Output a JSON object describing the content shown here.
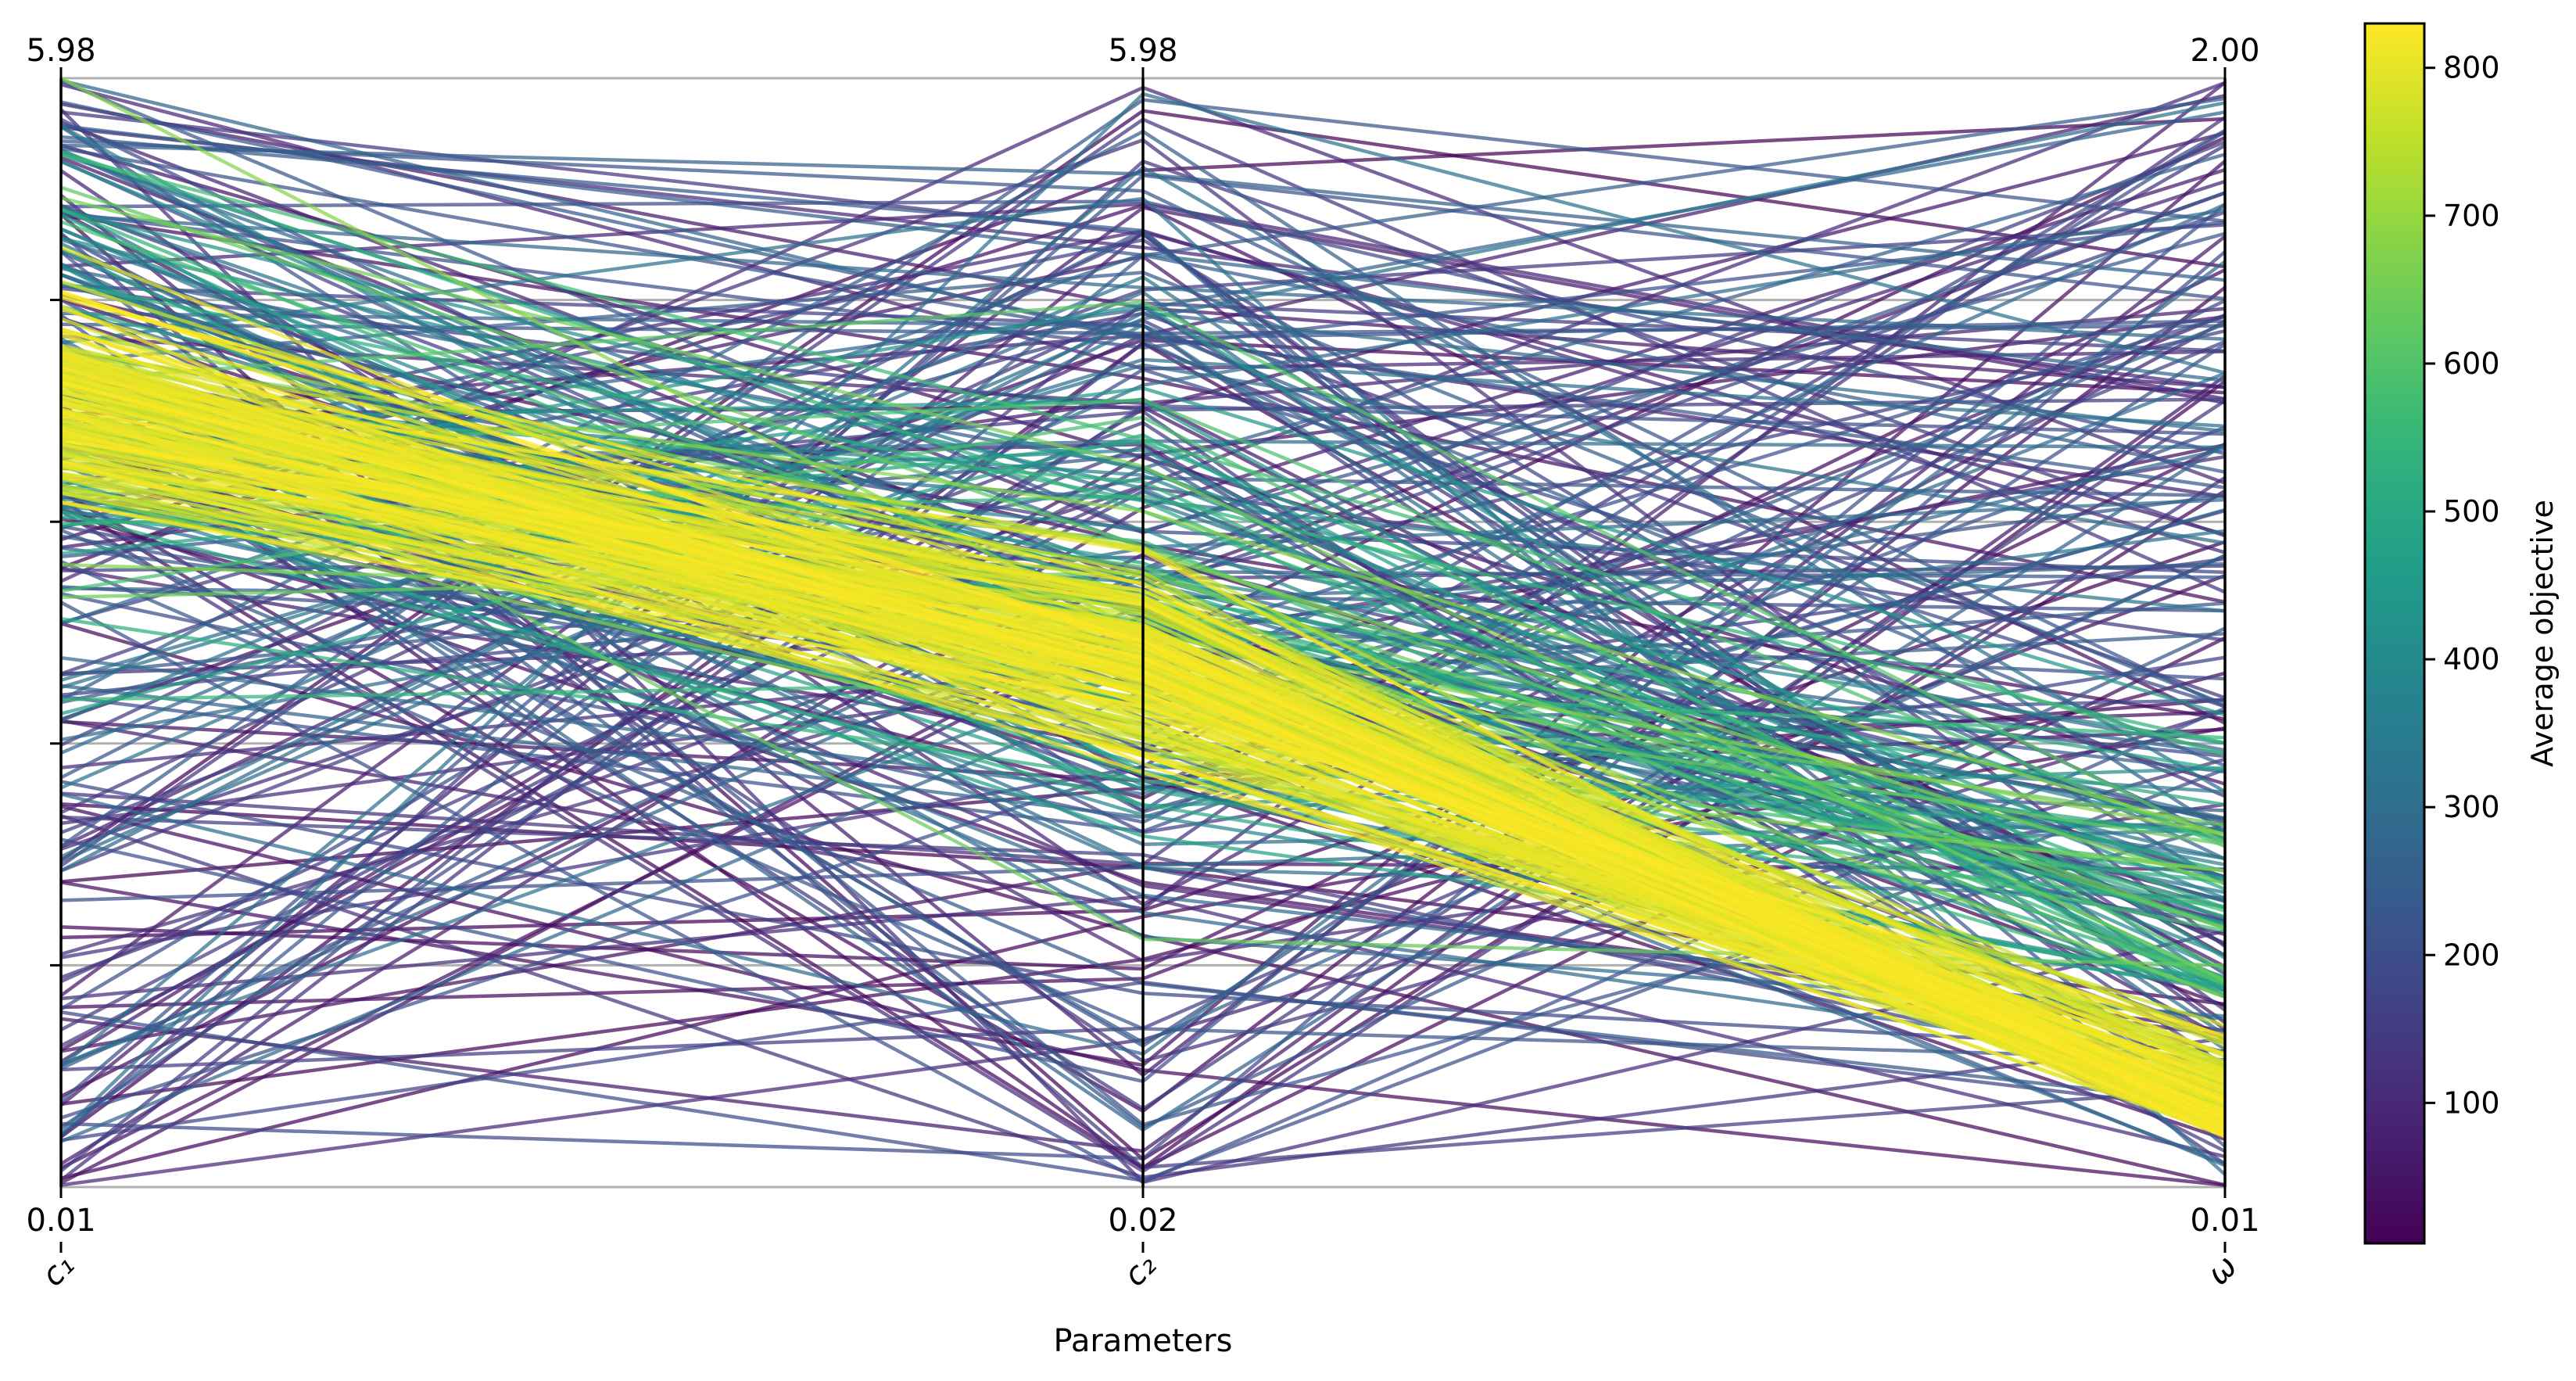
{
  "chart_data": {
    "type": "parallel-coordinates",
    "title": "",
    "xlabel": "Parameters",
    "axes": [
      {
        "name": "c₁",
        "top_label": "5.98",
        "bottom_label": "0.01",
        "range": [
          0.01,
          5.98
        ]
      },
      {
        "name": "c₂",
        "top_label": "5.98",
        "bottom_label": "0.02",
        "range": [
          0.02,
          5.98
        ]
      },
      {
        "name": "ω",
        "top_label": "2.00",
        "bottom_label": "0.01",
        "range": [
          0.01,
          2.0
        ]
      }
    ],
    "colorbar": {
      "label": "Average objective",
      "colormap": "viridis_r",
      "range": [
        5,
        830
      ],
      "ticks": [
        100,
        200,
        300,
        400,
        500,
        600,
        700,
        800
      ]
    },
    "grid": true,
    "trend": {
      "best_region": {
        "c1": [
          3.9,
          4.6
        ],
        "c2": [
          2.4,
          3.3
        ],
        "omega": [
          0.02,
          0.25
        ]
      },
      "note_free": true
    },
    "lines_summary": {
      "count": 420,
      "best_objective": 5,
      "worst_objective": 830
    }
  }
}
